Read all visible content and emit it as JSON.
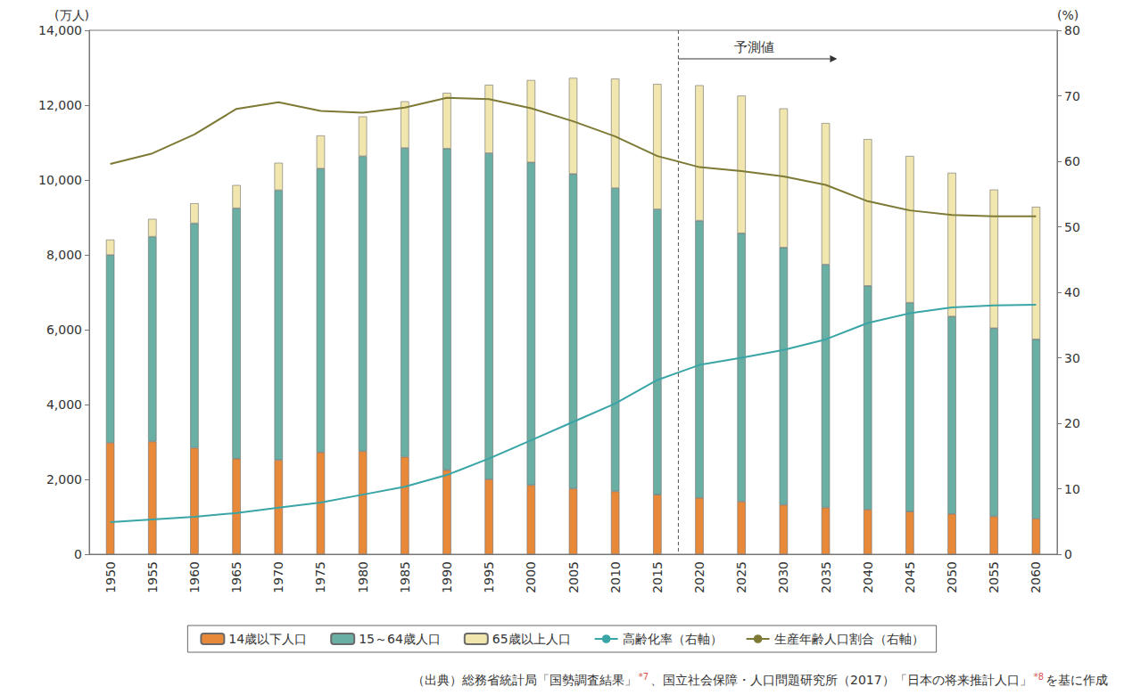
{
  "chart_data": {
    "type": "bar",
    "y_label": "(万人)",
    "y2_label": "(%)",
    "categories": [
      "1950",
      "1955",
      "1960",
      "1965",
      "1970",
      "1975",
      "1980",
      "1985",
      "1990",
      "1995",
      "2000",
      "2005",
      "2010",
      "2015",
      "2020",
      "2025",
      "2030",
      "2035",
      "2040",
      "2045",
      "2050",
      "2055",
      "2060"
    ],
    "series": [
      {
        "name": "14歳以下人口",
        "type": "bar",
        "color": "#E8893A",
        "values": [
          2979,
          3012,
          2843,
          2553,
          2515,
          2722,
          2751,
          2603,
          2249,
          2001,
          1847,
          1752,
          1680,
          1589,
          1507,
          1407,
          1321,
          1246,
          1194,
          1138,
          1077,
          1012,
          951
        ]
      },
      {
        "name": "15～64歳人口",
        "type": "bar",
        "color": "#6AAFA4",
        "values": [
          5017,
          5473,
          6000,
          6693,
          7212,
          7581,
          7883,
          8251,
          8590,
          8716,
          8622,
          8409,
          8103,
          7629,
          7406,
          7170,
          6875,
          6494,
          5978,
          5584,
          5275,
          5028,
          4793
        ]
      },
      {
        "name": "65歳以上人口",
        "type": "bar",
        "color": "#F1E6AE",
        "values": [
          411,
          475,
          535,
          618,
          733,
          887,
          1065,
          1247,
          1489,
          1826,
          2201,
          2567,
          2925,
          3347,
          3619,
          3677,
          3716,
          3782,
          3921,
          3919,
          3841,
          3704,
          3540
        ]
      },
      {
        "name": "高齢化率（右軸）",
        "type": "line",
        "axis": "y2",
        "color": "#3AA5A6",
        "marker": "none",
        "values": [
          4.9,
          5.3,
          5.7,
          6.3,
          7.1,
          7.9,
          9.1,
          10.3,
          12.1,
          14.6,
          17.4,
          20.2,
          23.0,
          26.6,
          28.9,
          30.0,
          31.2,
          32.8,
          35.3,
          36.8,
          37.7,
          38.0,
          38.1
        ]
      },
      {
        "name": "生産年齢人口割合（右軸）",
        "type": "line",
        "axis": "y2",
        "color": "#7D7A35",
        "marker": "none",
        "values": [
          59.6,
          61.2,
          64.1,
          68.0,
          69.0,
          67.7,
          67.4,
          68.2,
          69.7,
          69.5,
          68.1,
          66.1,
          63.8,
          60.8,
          59.1,
          58.5,
          57.7,
          56.4,
          53.9,
          52.5,
          51.8,
          51.6,
          51.6
        ]
      }
    ],
    "ylim": [
      0,
      14000
    ],
    "yticks": [
      0,
      {
        "value": 2000,
        "label": "2,000"
      },
      {
        "value": 4000,
        "label": "4,000"
      },
      {
        "value": 6000,
        "label": "6,000"
      },
      {
        "value": 8000,
        "label": "8,000"
      },
      {
        "value": 10000,
        "label": "10,000"
      },
      {
        "value": 12000,
        "label": "12,000"
      },
      {
        "value": 14000,
        "label": "14,000"
      }
    ],
    "y2lim": [
      0,
      80
    ],
    "y2ticks": [
      0,
      10,
      20,
      30,
      40,
      50,
      60,
      70,
      80
    ],
    "stacked": true,
    "grid": false,
    "legend": "bottom",
    "annotations": [
      {
        "text": "予測値",
        "between": [
          "2015",
          "2020"
        ]
      }
    ],
    "source": [
      "（出典）総務省統計局「国勢調査結果」",
      "*7",
      "、国立社会保障・人口問題研究所（2017）「日本の将来推計人口」",
      "*8",
      "を基に作成"
    ]
  }
}
